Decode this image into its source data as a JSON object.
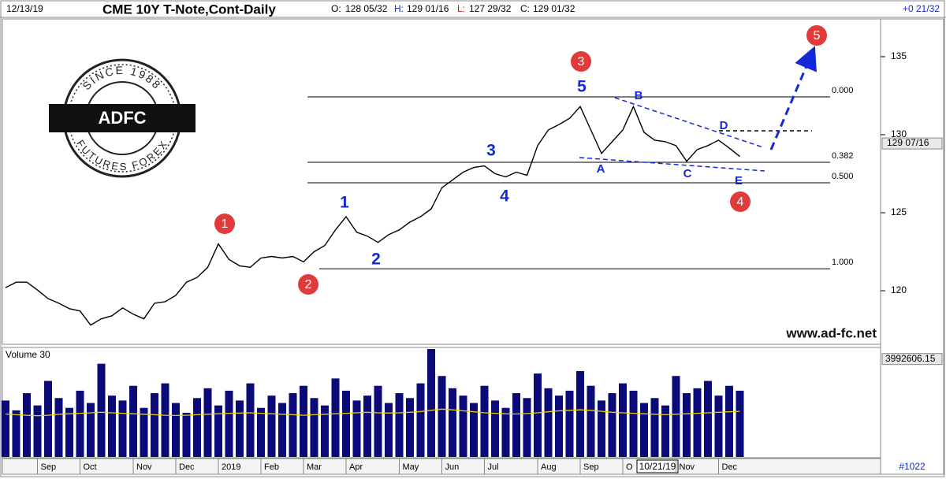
{
  "header": {
    "date": "12/13/19",
    "title": "CME 10Y T-Note,Cont-Daily",
    "ohlc": [
      {
        "label": "O:",
        "value": "128 05/32"
      },
      {
        "label": "H:",
        "value": "129 01/16"
      },
      {
        "label": "L:",
        "value": "127 29/32"
      },
      {
        "label": "C:",
        "value": "129 01/32"
      }
    ],
    "change": "+0 21/32"
  },
  "logo": {
    "top": "SINCE 1988",
    "name": "ADFC",
    "bottom": "FUTURES FOREX"
  },
  "footer": {
    "bar_count": "#1022"
  },
  "chart_data": [
    {
      "type": "line",
      "color": "#000000",
      "categories": [
        null,
        null,
        null,
        "Sep",
        null,
        null,
        null,
        "Oct",
        null,
        null,
        null,
        null,
        "Nov",
        null,
        null,
        null,
        "Dec",
        null,
        null,
        null,
        "2019",
        null,
        null,
        null,
        "Feb",
        null,
        null,
        null,
        "Mar",
        null,
        null,
        null,
        "Apr",
        null,
        null,
        null,
        null,
        "May",
        null,
        null,
        null,
        "Jun",
        null,
        null,
        null,
        "Jul",
        null,
        null,
        null,
        null,
        "Aug",
        null,
        null,
        null,
        "Sep",
        null,
        null,
        null,
        "O",
        null,
        null,
        null,
        null,
        "Nov",
        null,
        null,
        null,
        "Dec",
        null,
        null
      ],
      "values": [
        120.2,
        120.55,
        120.55,
        120.05,
        119.5,
        119.2,
        118.85,
        118.7,
        117.8,
        118.2,
        118.4,
        118.9,
        118.5,
        118.2,
        119.2,
        119.3,
        119.7,
        120.55,
        120.85,
        121.5,
        123.0,
        122.0,
        121.6,
        121.5,
        122.1,
        122.2,
        122.1,
        122.2,
        121.85,
        122.5,
        122.9,
        123.9,
        124.75,
        123.75,
        123.5,
        123.1,
        123.6,
        123.9,
        124.4,
        124.75,
        125.25,
        126.6,
        127.1,
        127.6,
        127.9,
        128.0,
        127.5,
        127.3,
        127.6,
        127.4,
        129.3,
        130.3,
        130.65,
        131.05,
        131.8,
        130.3,
        128.8,
        129.55,
        130.3,
        131.8,
        130.15,
        129.65,
        129.55,
        129.3,
        128.3,
        129.05,
        129.3,
        129.65,
        129.15,
        128.6
      ],
      "ylim": [
        116.57,
        137.37
      ],
      "yticks": [
        120,
        125,
        130,
        135
      ],
      "last_value": {
        "value": 129.44,
        "label": "129 07/16"
      },
      "fib_levels": [
        {
          "value": 132.42,
          "label": "0.000"
        },
        {
          "value": 128.23,
          "label": "0.382"
        },
        {
          "value": 126.92,
          "label": "0.500"
        },
        {
          "value": 121.41,
          "label": "1.000"
        }
      ],
      "annotations": {
        "waves": [
          "1",
          "2",
          "3",
          "4",
          "5"
        ],
        "corrective": [
          "A",
          "B",
          "C",
          "D",
          "E"
        ],
        "degree": [
          "1",
          "2",
          "3",
          "4",
          "5"
        ]
      },
      "cursor_label": "10/21/19",
      "watermark": "www.ad-fc.net"
    },
    {
      "type": "bar",
      "title": "Volume 30",
      "ylim": [
        0,
        4400000
      ],
      "last_value": 3992606.15,
      "series": [
        {
          "type": "bar",
          "color": "#0a0a78",
          "values": [
            2300000,
            1900000,
            2600000,
            2100000,
            3100000,
            2400000,
            2000000,
            2700000,
            2200000,
            3800000,
            2500000,
            2300000,
            2900000,
            2000000,
            2600000,
            3000000,
            2200000,
            1800000,
            2400000,
            2800000,
            2100000,
            2700000,
            2300000,
            3000000,
            2000000,
            2500000,
            2200000,
            2600000,
            2900000,
            2400000,
            2100000,
            3200000,
            2700000,
            2300000,
            2500000,
            2900000,
            2200000,
            2600000,
            2400000,
            3000000,
            4400000,
            3300000,
            2800000,
            2500000,
            2200000,
            2900000,
            2300000,
            2000000,
            2600000,
            2400000,
            3400000,
            2800000,
            2500000,
            2700000,
            3500000,
            2900000,
            2300000,
            2600000,
            3000000,
            2700000,
            2200000,
            2400000,
            2100000,
            3300000,
            2600000,
            2800000,
            3100000,
            2500000,
            2900000,
            2700000
          ]
        },
        {
          "type": "line",
          "color": "#e8d000",
          "values": [
            1750000,
            1720000,
            1700000,
            1680000,
            1700000,
            1740000,
            1760000,
            1780000,
            1800000,
            1820000,
            1800000,
            1780000,
            1760000,
            1740000,
            1720000,
            1700000,
            1690000,
            1700000,
            1720000,
            1740000,
            1760000,
            1780000,
            1790000,
            1800000,
            1780000,
            1760000,
            1740000,
            1720000,
            1700000,
            1720000,
            1740000,
            1760000,
            1780000,
            1800000,
            1820000,
            1800000,
            1790000,
            1800000,
            1820000,
            1850000,
            1900000,
            1950000,
            1920000,
            1880000,
            1840000,
            1800000,
            1780000,
            1760000,
            1750000,
            1770000,
            1800000,
            1840000,
            1880000,
            1900000,
            1920000,
            1900000,
            1860000,
            1820000,
            1800000,
            1780000,
            1760000,
            1740000,
            1720000,
            1740000,
            1760000,
            1780000,
            1800000,
            1820000,
            1840000,
            1860000
          ]
        }
      ]
    }
  ]
}
